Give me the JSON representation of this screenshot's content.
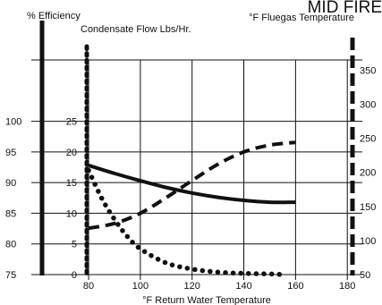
{
  "chart_data": {
    "type": "line",
    "title": "MID FIRE",
    "xlabel": "°F Return Water Temperature",
    "x_ticks": [
      80,
      100,
      120,
      140,
      160,
      180
    ],
    "xlim": [
      62,
      182
    ],
    "axes": {
      "efficiency": {
        "label": "% Efficiency",
        "ticks": [
          75,
          80,
          85,
          90,
          95,
          100
        ],
        "range": [
          75,
          110
        ]
      },
      "condensate": {
        "label": "Condensate Flow Lbs/Hr.",
        "ticks": [
          0,
          5,
          10,
          15,
          20,
          25
        ],
        "range": [
          0,
          35
        ]
      },
      "fluegas": {
        "label": "°F Fluegas Temperature",
        "ticks": [
          50,
          100,
          150,
          200,
          250,
          300,
          350
        ],
        "range": [
          50,
          365
        ]
      }
    },
    "series": [
      {
        "axis": "efficiency",
        "style": "solid",
        "x": [
          80,
          90,
          100,
          110,
          120,
          130,
          140,
          150,
          160
        ],
        "y": [
          92.8,
          91.5,
          90.3,
          89.2,
          88.3,
          87.6,
          87.1,
          86.8,
          86.8
        ]
      },
      {
        "axis": "fluegas",
        "style": "dashed",
        "x": [
          80,
          90,
          100,
          110,
          120,
          130,
          140,
          150,
          160
        ],
        "y": [
          118,
          125,
          140,
          163,
          188,
          212,
          230,
          240,
          244
        ]
      },
      {
        "axis": "condensate",
        "style": "dotted",
        "x": [
          80,
          85,
          90,
          95,
          100,
          110,
          120,
          130,
          140,
          150,
          155
        ],
        "y": [
          17,
          12.5,
          9,
          6.2,
          4.2,
          1.9,
          0.9,
          0.4,
          0.2,
          0.1,
          0
        ]
      }
    ]
  }
}
